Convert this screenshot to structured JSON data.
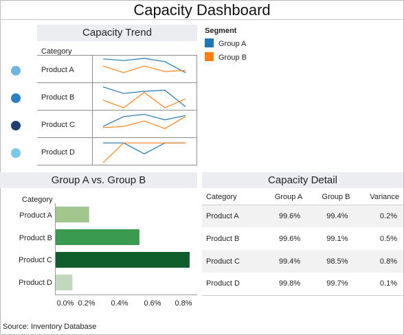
{
  "dashboard": {
    "title": "Capacity Dashboard",
    "source": "Source: Inventory Database"
  },
  "trend": {
    "title": "Capacity Trend",
    "category_label": "Category",
    "rows": [
      "Product A",
      "Product B",
      "Product C",
      "Product D"
    ],
    "row_colors": [
      "#6fb5e0",
      "#2d7fc1",
      "#1f3f6e",
      "#7cc6e6"
    ],
    "legend_title": "Segment",
    "legend": [
      {
        "label": "Group A",
        "color": "#1f77b4"
      },
      {
        "label": "Group B",
        "color": "#ff7f0e"
      }
    ]
  },
  "comparison": {
    "title": "Group A vs. Group B",
    "category_label": "Category"
  },
  "detail": {
    "title": "Capacity Detail",
    "columns": [
      "Category",
      "Group A",
      "Group B",
      "Variance"
    ],
    "rows": [
      [
        "Product A",
        "99.6%",
        "99.4%",
        "0.2%"
      ],
      [
        "Product B",
        "99.6%",
        "99.1%",
        "0.5%"
      ],
      [
        "Product C",
        "99.4%",
        "98.5%",
        "0.8%"
      ],
      [
        "Product D",
        "99.8%",
        "99.7%",
        "0.1%"
      ]
    ]
  },
  "chart_data": [
    {
      "type": "line",
      "title": "Capacity Trend",
      "panels": [
        "Product A",
        "Product B",
        "Product C",
        "Product D"
      ],
      "x": [
        1,
        2,
        3,
        4,
        5
      ],
      "series_by_panel": [
        [
          {
            "name": "Group A",
            "values": [
              0.95,
              0.8,
              1.0,
              0.7,
              -0.3
            ]
          },
          {
            "name": "Group B",
            "values": [
              0.3,
              -0.3,
              0.3,
              -0.2,
              -0.1
            ]
          }
        ],
        [
          {
            "name": "Group A",
            "values": [
              0.9,
              0.3,
              0.5,
              0.6,
              -0.9
            ]
          },
          {
            "name": "Group B",
            "values": [
              -0.3,
              -1.0,
              0.4,
              -1.0,
              -0.2
            ]
          }
        ],
        [
          {
            "name": "Group A",
            "values": [
              -0.2,
              0.7,
              0.9,
              0.4,
              0.8
            ]
          },
          {
            "name": "Group B",
            "values": [
              -0.3,
              -0.2,
              0.3,
              -0.4,
              0.7
            ]
          }
        ],
        [
          {
            "name": "Group A",
            "values": [
              0.8,
              0.8,
              -0.2,
              0.8,
              0.8
            ]
          },
          {
            "name": "Group B",
            "values": [
              -1.0,
              0.8,
              0.8,
              0.8,
              0.8
            ]
          }
        ]
      ]
    },
    {
      "type": "bar",
      "title": "Group A vs. Group B",
      "categories": [
        "Product A",
        "Product B",
        "Product C",
        "Product D"
      ],
      "values": [
        0.2,
        0.5,
        0.8,
        0.1
      ],
      "colors": [
        "#a1c68e",
        "#3a9a4f",
        "#0f5e2c",
        "#c2d8bc"
      ],
      "xticks": [
        "0.0%",
        "0.2%",
        "0.4%",
        "0.6%",
        "0.8%"
      ],
      "xlim": [
        0,
        0.8
      ]
    }
  ]
}
